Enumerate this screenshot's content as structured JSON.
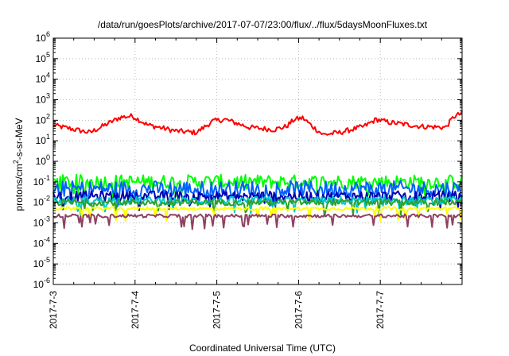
{
  "chart_data": {
    "type": "line",
    "title": "/data/run/goesPlots/archive/2017-07-07/23:00/flux/../flux/5daysMoonFluxes.txt",
    "xlabel": "Coordinated Universal Time (UTC)",
    "ylabel_parts": [
      "protons/cm",
      "2",
      "-s-sr-MeV"
    ],
    "y_scale": "log",
    "ylim": [
      1e-06,
      1000000.0
    ],
    "y_ticks": [
      {
        "base": "10",
        "exp": "6",
        "value": 1000000.0
      },
      {
        "base": "10",
        "exp": "5",
        "value": 100000.0
      },
      {
        "base": "10",
        "exp": "4",
        "value": 10000.0
      },
      {
        "base": "10",
        "exp": "3",
        "value": 1000.0
      },
      {
        "base": "10",
        "exp": "2",
        "value": 100.0
      },
      {
        "base": "10",
        "exp": "1",
        "value": 10.0
      },
      {
        "base": "10",
        "exp": "0",
        "value": 1.0
      },
      {
        "base": "10",
        "exp": "-1",
        "value": 0.1
      },
      {
        "base": "10",
        "exp": "-2",
        "value": 0.01
      },
      {
        "base": "10",
        "exp": "-3",
        "value": 0.001
      },
      {
        "base": "10",
        "exp": "-4",
        "value": 0.0001
      },
      {
        "base": "10",
        "exp": "-5",
        "value": 1e-05
      },
      {
        "base": "10",
        "exp": "-6",
        "value": 1e-06
      }
    ],
    "x_range_days": [
      "2017-07-03",
      "2017-07-08"
    ],
    "x_ticks": [
      {
        "label": "2017-7-3",
        "day": 0
      },
      {
        "label": "2017-7-4",
        "day": 1
      },
      {
        "label": "2017-7-5",
        "day": 2
      },
      {
        "label": "2017-7-6",
        "day": 3
      },
      {
        "label": "2017-7-7",
        "day": 4
      }
    ],
    "grid": true,
    "series": [
      {
        "color": "#ff0000",
        "baseline": 40,
        "noise": 0.25,
        "bumps": [
          [
            0.02,
            55
          ],
          [
            0.45,
            25
          ],
          [
            0.82,
            140
          ],
          [
            0.97,
            160
          ],
          [
            1.15,
            60
          ],
          [
            1.5,
            30
          ],
          [
            1.75,
            25
          ],
          [
            1.95,
            90
          ],
          [
            2.1,
            110
          ],
          [
            2.4,
            45
          ],
          [
            2.7,
            35
          ],
          [
            2.85,
            50
          ],
          [
            2.95,
            110
          ],
          [
            3.05,
            130
          ],
          [
            3.2,
            40
          ],
          [
            3.3,
            20
          ],
          [
            3.5,
            25
          ],
          [
            3.8,
            50
          ],
          [
            3.95,
            110
          ],
          [
            4.1,
            80
          ],
          [
            4.5,
            50
          ],
          [
            4.8,
            45
          ],
          [
            4.9,
            150
          ],
          [
            5.0,
            220
          ]
        ]
      },
      {
        "color": "#00ff00",
        "baseline": 0.1,
        "noise": 0.35,
        "spiky": true
      },
      {
        "color": "#0060ff",
        "baseline": 0.045,
        "noise": 0.4,
        "spiky": true
      },
      {
        "color": "#0000b0",
        "baseline": 0.02,
        "noise": 0.25,
        "spiky": true
      },
      {
        "color": "#00c8c8",
        "baseline": 0.012,
        "noise": 0.2,
        "spiky": true
      },
      {
        "color": "#2ca02c",
        "baseline": 0.01,
        "noise": 0.15,
        "spiky": true
      },
      {
        "color": "#ffff00",
        "baseline": 0.005,
        "noise": 0.08,
        "spiky": true
      },
      {
        "color": "#904060",
        "baseline": 0.0022,
        "noise": 0.08,
        "spiky": true
      }
    ]
  }
}
